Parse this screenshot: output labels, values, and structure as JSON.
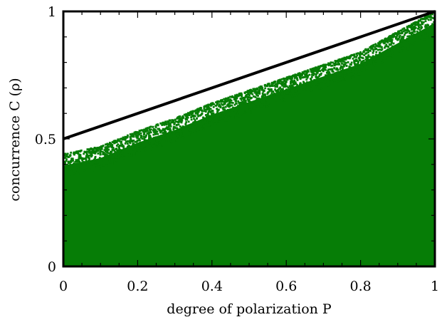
{
  "chart_data": {
    "type": "scatter",
    "xlabel": "degree of polarization P",
    "ylabel": "concurrence C (ρ)",
    "xlim": [
      0,
      1
    ],
    "ylim": [
      0,
      1
    ],
    "x_ticks": [
      {
        "value": 0,
        "label": "0"
      },
      {
        "value": 0.2,
        "label": "0.2"
      },
      {
        "value": 0.4,
        "label": "0.4"
      },
      {
        "value": 0.6,
        "label": "0.6"
      },
      {
        "value": 0.8,
        "label": "0.8"
      },
      {
        "value": 1,
        "label": "1"
      }
    ],
    "y_ticks": [
      {
        "value": 0,
        "label": "0"
      },
      {
        "value": 0.5,
        "label": "0.5"
      },
      {
        "value": 1,
        "label": "1"
      }
    ],
    "bound_line": {
      "x": [
        0,
        1
      ],
      "y": [
        0.5,
        1
      ]
    },
    "scatter_upper_envelope": {
      "x": [
        0,
        0.1,
        0.2,
        0.3,
        0.4,
        0.5,
        0.6,
        0.7,
        0.8,
        0.9,
        1.0
      ],
      "y": [
        0.44,
        0.47,
        0.53,
        0.58,
        0.64,
        0.69,
        0.74,
        0.79,
        0.84,
        0.92,
        1.0
      ]
    },
    "colors": {
      "scatter": "#067d06",
      "line": "#000000"
    },
    "grid": false
  }
}
